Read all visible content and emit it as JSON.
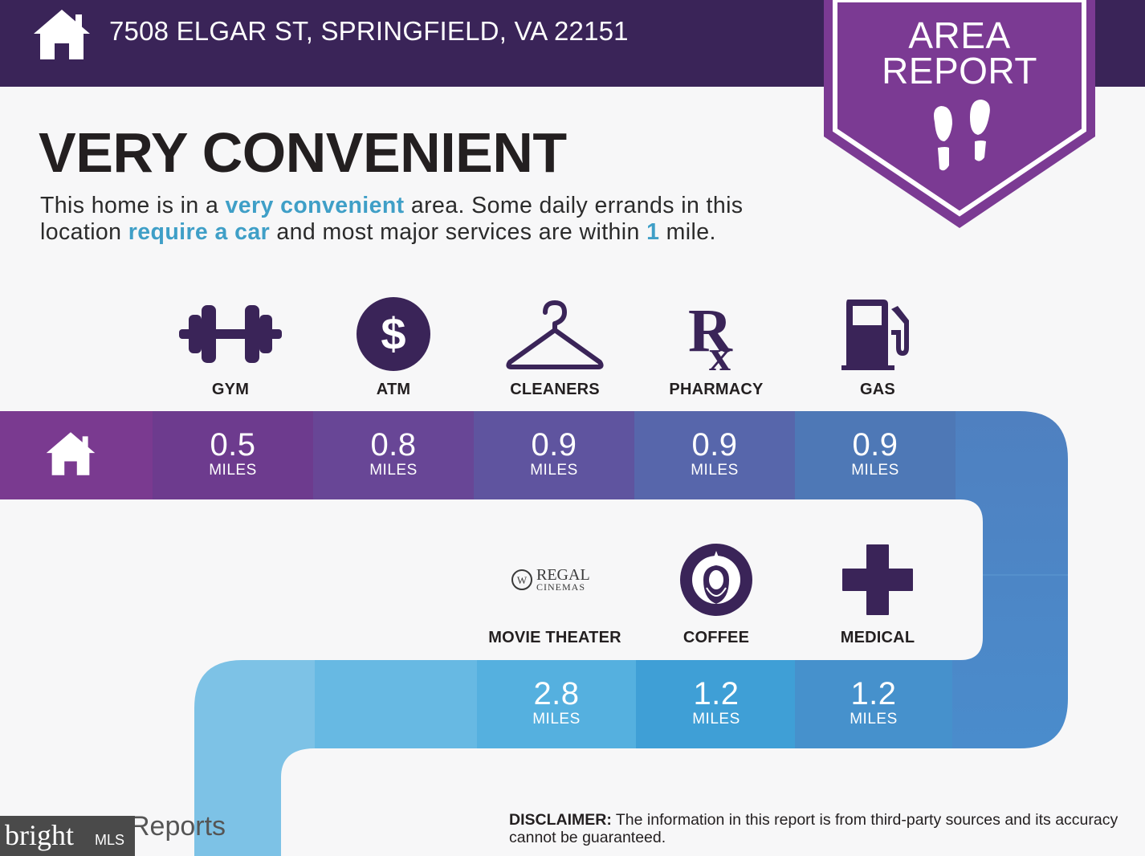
{
  "header": {
    "address": "7508 ELGAR ST, SPRINGFIELD, VA 22151",
    "icon": "home-icon"
  },
  "badge": {
    "line1": "AREA",
    "line2": "REPORT",
    "icon": "footprints-icon"
  },
  "headline": "VERY CONVENIENT",
  "description": {
    "part1": "This home is in a ",
    "highlight1": "very convenient",
    "part2": " area. Some daily errands in this location ",
    "highlight2": "require a car",
    "part3": " and most major services are within ",
    "highlight3": "1",
    "part4": " mile."
  },
  "row1": [
    {
      "label": "GYM",
      "distance": "0.5",
      "unit": "MILES",
      "icon": "dumbbell-icon",
      "color": "#6d3b8e"
    },
    {
      "label": "ATM",
      "distance": "0.8",
      "unit": "MILES",
      "icon": "dollar-icon",
      "color": "#684696"
    },
    {
      "label": "CLEANERS",
      "distance": "0.9",
      "unit": "MILES",
      "icon": "hanger-icon",
      "color": "#5f549f"
    },
    {
      "label": "PHARMACY",
      "distance": "0.9",
      "unit": "MILES",
      "icon": "rx-icon",
      "color": "#5766ab"
    },
    {
      "label": "GAS",
      "distance": "0.9",
      "unit": "MILES",
      "icon": "gas-pump-icon",
      "color": "#4e78b6"
    }
  ],
  "row2": [
    {
      "label": "MOVIE THEATER",
      "distance": "2.8",
      "unit": "MILES",
      "icon": "regal-cinemas-logo",
      "logo_text1": "REGAL",
      "logo_text2": "CINEMAS",
      "color": "#55b0df"
    },
    {
      "label": "COFFEE",
      "distance": "1.2",
      "unit": "MILES",
      "icon": "starbucks-logo",
      "color": "#3f9fd6"
    },
    {
      "label": "MEDICAL",
      "distance": "1.2",
      "unit": "MILES",
      "icon": "medical-cross-icon",
      "color": "#4691cc"
    }
  ],
  "disclaimer": {
    "label": "DISCLAIMER:",
    "text": " The information in this report is from third-party sources and its accuracy cannot be guaranteed."
  },
  "footer": {
    "reports_text": "Reports",
    "watermark_brand": "bright",
    "watermark_suffix": "MLS"
  },
  "colors": {
    "header_bg": "#3a2458",
    "badge_purple": "#7b3a93",
    "highlight": "#3f9fc7",
    "dark_icon": "#3a2458"
  }
}
